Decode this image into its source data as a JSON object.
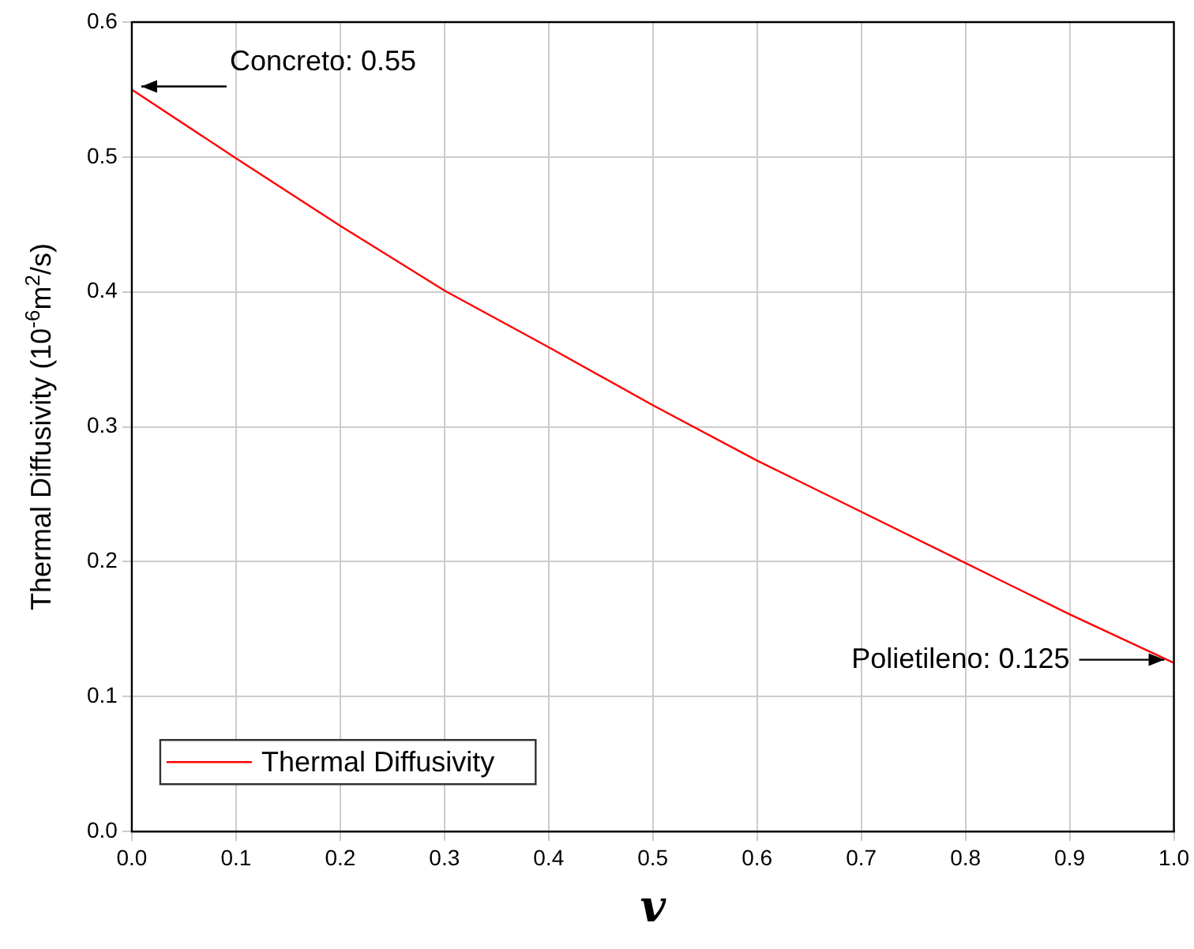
{
  "chart_data": {
    "type": "line",
    "xlabel": "v",
    "ylabel": "Thermal Diffusivity (10$^{-6}$m$^{2}$/s)",
    "x": [
      0,
      0.1,
      0.2,
      0.3,
      0.4,
      0.5,
      0.6,
      0.7,
      0.8,
      0.9,
      1.0
    ],
    "series": [
      {
        "name": "Thermal Diffusivity",
        "color": "#ff0000",
        "values": [
          0.55,
          0.499,
          0.449,
          0.401,
          0.359,
          0.316,
          0.275,
          0.237,
          0.199,
          0.161,
          0.125
        ]
      }
    ],
    "xlim": [
      0,
      1
    ],
    "xticks": [
      {
        "value": 0,
        "label": "0.0"
      },
      0.1,
      0.2,
      0.3,
      0.4,
      0.5,
      0.6,
      0.7,
      0.8,
      0.9,
      {
        "value": 1,
        "label": "1.0"
      }
    ],
    "ylim": [
      0,
      0.6
    ],
    "yticks": [
      {
        "value": 0,
        "label": "0.0"
      },
      0.1,
      0.2,
      0.3,
      0.4,
      0.5,
      0.6
    ],
    "grid": true,
    "legend": "bottom left",
    "marker": "none",
    "line_style": "solid",
    "annotations": [
      {
        "text": "Concreto: 0.55",
        "x": 0,
        "y": 0.55
      },
      {
        "text": "Polietileno: 0.125",
        "x": 1,
        "y": 0.125
      }
    ]
  }
}
